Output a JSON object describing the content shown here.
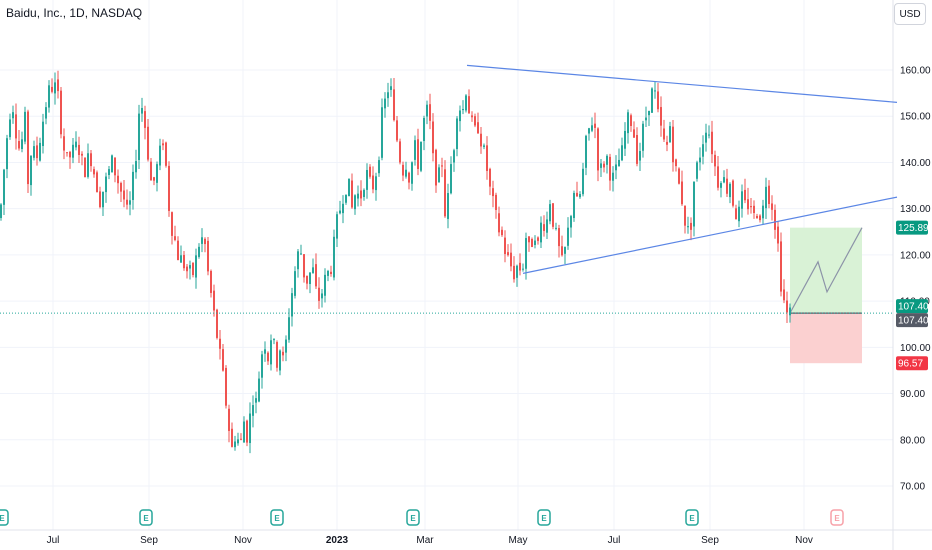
{
  "header": {
    "title": "Baidu, Inc., 1D, NASDAQ",
    "currency": "USD"
  },
  "colors": {
    "up": "#26a69a",
    "down": "#ef5350",
    "line": "#5b86e5",
    "profit": "#d9f2d6",
    "loss": "#fbd0d0"
  },
  "chart_data": {
    "type": "candlestick",
    "title": "Baidu, Inc., 1D, NASDAQ",
    "ylim": [
      68,
      175
    ],
    "y_ticks": [
      "70.00",
      "80.00",
      "90.00",
      "100.00",
      "110.00",
      "120.00",
      "130.00",
      "140.00",
      "150.00",
      "160.00"
    ],
    "x_ticks": [
      {
        "label": "Jul",
        "bold": false
      },
      {
        "label": "Sep",
        "bold": false
      },
      {
        "label": "Nov",
        "bold": false
      },
      {
        "label": "2023",
        "bold": true
      },
      {
        "label": "Mar",
        "bold": false
      },
      {
        "label": "May",
        "bold": false
      },
      {
        "label": "Jul",
        "bold": false
      },
      {
        "label": "Sep",
        "bold": false
      },
      {
        "label": "Nov",
        "bold": false
      }
    ],
    "price_path": [
      [
        0,
        128
      ],
      [
        3,
        136
      ],
      [
        8,
        148
      ],
      [
        12,
        154
      ],
      [
        16,
        147
      ],
      [
        20,
        142
      ],
      [
        25,
        149
      ],
      [
        28,
        136
      ],
      [
        32,
        144
      ],
      [
        36,
        140
      ],
      [
        42,
        148
      ],
      [
        48,
        155
      ],
      [
        54,
        157
      ],
      [
        58,
        154
      ],
      [
        62,
        146
      ],
      [
        66,
        140
      ],
      [
        72,
        142
      ],
      [
        78,
        144
      ],
      [
        84,
        138
      ],
      [
        90,
        142
      ],
      [
        96,
        136
      ],
      [
        100,
        132
      ],
      [
        106,
        136
      ],
      [
        112,
        140
      ],
      [
        118,
        136
      ],
      [
        124,
        132
      ],
      [
        128,
        128
      ],
      [
        132,
        134
      ],
      [
        136,
        142
      ],
      [
        140,
        154
      ],
      [
        144,
        150
      ],
      [
        148,
        142
      ],
      [
        152,
        134
      ],
      [
        158,
        140
      ],
      [
        164,
        146
      ],
      [
        168,
        132
      ],
      [
        172,
        126
      ],
      [
        178,
        120
      ],
      [
        184,
        118
      ],
      [
        188,
        116
      ],
      [
        194,
        116
      ],
      [
        198,
        122
      ],
      [
        204,
        124
      ],
      [
        208,
        116
      ],
      [
        212,
        110
      ],
      [
        216,
        104
      ],
      [
        220,
        98
      ],
      [
        224,
        92
      ],
      [
        228,
        84
      ],
      [
        232,
        78
      ],
      [
        236,
        82
      ],
      [
        240,
        78
      ],
      [
        244,
        84
      ],
      [
        248,
        80
      ],
      [
        252,
        90
      ],
      [
        256,
        88
      ],
      [
        260,
        96
      ],
      [
        264,
        102
      ],
      [
        268,
        98
      ],
      [
        272,
        104
      ],
      [
        276,
        96
      ],
      [
        280,
        100
      ],
      [
        284,
        96
      ],
      [
        288,
        106
      ],
      [
        292,
        112
      ],
      [
        296,
        118
      ],
      [
        300,
        122
      ],
      [
        304,
        116
      ],
      [
        308,
        114
      ],
      [
        312,
        118
      ],
      [
        316,
        112
      ],
      [
        320,
        110
      ],
      [
        324,
        114
      ],
      [
        328,
        116
      ],
      [
        332,
        118
      ],
      [
        336,
        126
      ],
      [
        340,
        130
      ],
      [
        344,
        134
      ],
      [
        348,
        136
      ],
      [
        352,
        130
      ],
      [
        356,
        134
      ],
      [
        360,
        132
      ],
      [
        366,
        138
      ],
      [
        372,
        134
      ],
      [
        378,
        140
      ],
      [
        382,
        150
      ],
      [
        386,
        154
      ],
      [
        390,
        158
      ],
      [
        394,
        148
      ],
      [
        398,
        144
      ],
      [
        402,
        138
      ],
      [
        406,
        140
      ],
      [
        410,
        136
      ],
      [
        414,
        144
      ],
      [
        418,
        140
      ],
      [
        422,
        146
      ],
      [
        426,
        152
      ],
      [
        430,
        148
      ],
      [
        434,
        138
      ],
      [
        438,
        136
      ],
      [
        442,
        140
      ],
      [
        446,
        126
      ],
      [
        450,
        138
      ],
      [
        454,
        144
      ],
      [
        458,
        154
      ],
      [
        462,
        150
      ],
      [
        466,
        156
      ],
      [
        470,
        150
      ],
      [
        474,
        146
      ],
      [
        478,
        148
      ],
      [
        482,
        144
      ],
      [
        486,
        140
      ],
      [
        490,
        134
      ],
      [
        494,
        130
      ],
      [
        498,
        126
      ],
      [
        502,
        124
      ],
      [
        506,
        120
      ],
      [
        510,
        118
      ],
      [
        514,
        116
      ],
      [
        518,
        118
      ],
      [
        522,
        116
      ],
      [
        526,
        124
      ],
      [
        530,
        120
      ],
      [
        534,
        126
      ],
      [
        538,
        122
      ],
      [
        542,
        128
      ],
      [
        546,
        126
      ],
      [
        550,
        132
      ],
      [
        554,
        126
      ],
      [
        558,
        122
      ],
      [
        562,
        118
      ],
      [
        566,
        122
      ],
      [
        570,
        128
      ],
      [
        574,
        134
      ],
      [
        578,
        130
      ],
      [
        582,
        136
      ],
      [
        586,
        144
      ],
      [
        590,
        148
      ],
      [
        594,
        150
      ],
      [
        598,
        140
      ],
      [
        602,
        138
      ],
      [
        606,
        142
      ],
      [
        610,
        138
      ],
      [
        614,
        136
      ],
      [
        618,
        140
      ],
      [
        622,
        142
      ],
      [
        626,
        148
      ],
      [
        630,
        150
      ],
      [
        634,
        146
      ],
      [
        638,
        140
      ],
      [
        642,
        146
      ],
      [
        646,
        150
      ],
      [
        650,
        154
      ],
      [
        654,
        156
      ],
      [
        658,
        150
      ],
      [
        662,
        146
      ],
      [
        666,
        142
      ],
      [
        670,
        148
      ],
      [
        674,
        140
      ],
      [
        678,
        136
      ],
      [
        682,
        132
      ],
      [
        686,
        126
      ],
      [
        690,
        124
      ],
      [
        694,
        136
      ],
      [
        698,
        140
      ],
      [
        702,
        144
      ],
      [
        706,
        148
      ],
      [
        710,
        146
      ],
      [
        714,
        140
      ],
      [
        718,
        136
      ],
      [
        722,
        138
      ],
      [
        726,
        134
      ],
      [
        730,
        136
      ],
      [
        734,
        130
      ],
      [
        738,
        128
      ],
      [
        742,
        132
      ],
      [
        746,
        130
      ],
      [
        750,
        132
      ],
      [
        754,
        128
      ],
      [
        758,
        130
      ],
      [
        762,
        128
      ],
      [
        766,
        136
      ],
      [
        770,
        132
      ],
      [
        774,
        130
      ],
      [
        776,
        124
      ],
      [
        778,
        122
      ],
      [
        780,
        116
      ],
      [
        782,
        112
      ],
      [
        784,
        110
      ],
      [
        786,
        106
      ],
      [
        788,
        108
      ],
      [
        790,
        107.4
      ]
    ],
    "trendlines": [
      {
        "from": [
          467,
          161
        ],
        "to": [
          897,
          153
        ]
      },
      {
        "from": [
          523,
          116
        ],
        "to": [
          897,
          132.5
        ]
      }
    ],
    "position": {
      "x_start": 790,
      "x_end": 862,
      "entry": 107.4,
      "target": 125.89,
      "stop": 96.57,
      "projection": [
        [
          790,
          107.4
        ],
        [
          818,
          118.5
        ],
        [
          827,
          112
        ],
        [
          862,
          125.89
        ]
      ]
    },
    "last_price": 107.4,
    "price_labels": [
      {
        "value": 125.89,
        "text": "125.89",
        "color": "#089981"
      },
      {
        "value": 107.4,
        "text": "107.40",
        "color": "#089981"
      },
      {
        "value": 107.4,
        "text": "107.40",
        "color": "#555a66"
      },
      {
        "value": 96.57,
        "text": "96.57",
        "color": "#f23645"
      }
    ],
    "earnings": [
      {
        "x": 2,
        "label": "E",
        "future": false
      },
      {
        "x": 146,
        "label": "E",
        "future": false
      },
      {
        "x": 277,
        "label": "E",
        "future": false
      },
      {
        "x": 413,
        "label": "E",
        "future": false
      },
      {
        "x": 544,
        "label": "E",
        "future": false
      },
      {
        "x": 692,
        "label": "E",
        "future": false
      },
      {
        "x": 837,
        "label": "E",
        "future": true
      }
    ]
  }
}
